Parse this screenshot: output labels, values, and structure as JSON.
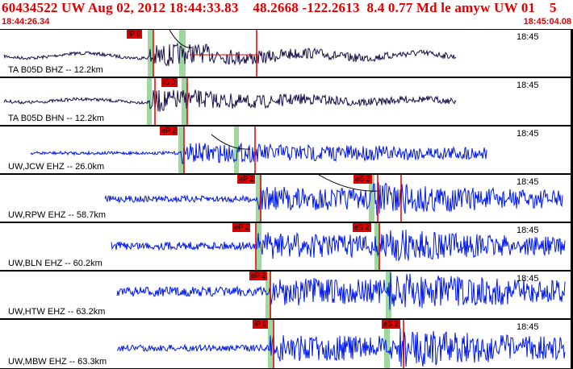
{
  "header": {
    "title": "60434522 UW Aug 02, 2012 18:44:33.83    48.2668 -122.2613  8.4 0.77 Md le amyw UW 01    5",
    "start_time": "18:44:26.34",
    "end_time": "18:45:04.08"
  },
  "colors": {
    "header_text": "#e00000",
    "pick_red": "#e00000",
    "trace_dark": "#1a0f4a",
    "trace_blue": "#0018e8",
    "window_green": "#9fd89f"
  },
  "traces": [
    {
      "label": "TA B05D BHZ -- 12.2km",
      "time_label": "18:45",
      "color": "dark",
      "picks": [
        {
          "text": "iP 0"
        }
      ]
    },
    {
      "label": "TA B05D BHN -- 12.2km",
      "time_label": "18:45",
      "color": "dark",
      "picks": [
        {
          "text": "iS 0"
        }
      ]
    },
    {
      "label": "UW,JCW EHZ -- 26.0km",
      "time_label": "18:45",
      "color": "blue",
      "picks": [
        {
          "text": "eP 2"
        }
      ]
    },
    {
      "label": "UW,RPW EHZ -- 58.7km",
      "time_label": "18:45",
      "color": "blue",
      "picks": [
        {
          "text": "eP 2"
        },
        {
          "text": "eS 2"
        }
      ]
    },
    {
      "label": "UW,BLN EHZ -- 60.2km",
      "time_label": "18:45",
      "color": "blue",
      "picks": [
        {
          "text": "eP 2"
        },
        {
          "text": "eS 2"
        }
      ]
    },
    {
      "label": "UW,HTW EHZ -- 63.2km",
      "time_label": "18:45",
      "color": "blue",
      "picks": [
        {
          "text": "eP 2"
        }
      ]
    },
    {
      "label": "UW,MBW EHZ -- 63.3km",
      "time_label": "18:45",
      "color": "blue",
      "picks": [
        {
          "text": "iP 0"
        },
        {
          "text": "eS 2"
        }
      ]
    }
  ]
}
